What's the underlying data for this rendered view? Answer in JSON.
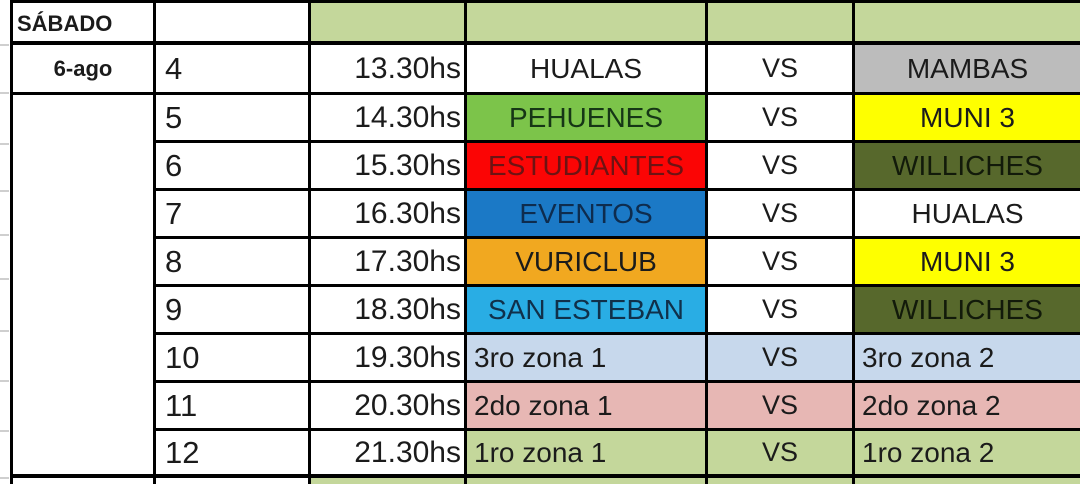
{
  "sheet": {
    "day_label": "SÁBADO",
    "date_label": "6-ago"
  },
  "colors": {
    "header_bg": "#c4d79b",
    "grid_line": "#000000",
    "default_text": "#1b1b1b"
  },
  "rows": [
    {
      "num": "4",
      "time": "13.30hs",
      "team1": "HUALAS",
      "team1_bg": "#ffffff",
      "team1_fg": "#1b1b1b",
      "vs": "VS",
      "vs_bg": "#ffffff",
      "team2": "MAMBAS",
      "team2_bg": "#bcbcbc",
      "team2_fg": "#1b1b1b",
      "align": "center"
    },
    {
      "num": "5",
      "time": "14.30hs",
      "team1": "PEHUENES",
      "team1_bg": "#7cc44a",
      "team1_fg": "#163616",
      "vs": "VS",
      "vs_bg": "#ffffff",
      "team2": "MUNI 3",
      "team2_bg": "#feff00",
      "team2_fg": "#1b1b1b",
      "align": "center"
    },
    {
      "num": "6",
      "time": "15.30hs",
      "team1": "ESTUDIANTES",
      "team1_bg": "#fb0505",
      "team1_fg": "#6d1313",
      "vs": "VS",
      "vs_bg": "#ffffff",
      "team2": "WILLICHES",
      "team2_bg": "#57682c",
      "team2_fg": "#121a0a",
      "align": "center"
    },
    {
      "num": "7",
      "time": "16.30hs",
      "team1": "EVENTOS",
      "team1_bg": "#1b79c6",
      "team1_fg": "#0e2c4e",
      "vs": "VS",
      "vs_bg": "#ffffff",
      "team2": "HUALAS",
      "team2_bg": "#ffffff",
      "team2_fg": "#1b1b1b",
      "align": "center"
    },
    {
      "num": "8",
      "time": "17.30hs",
      "team1": "VURICLUB",
      "team1_bg": "#f1a820",
      "team1_fg": "#1b1b1b",
      "vs": "VS",
      "vs_bg": "#ffffff",
      "team2": "MUNI 3",
      "team2_bg": "#feff00",
      "team2_fg": "#1b1b1b",
      "align": "center"
    },
    {
      "num": "9",
      "time": "18.30hs",
      "team1": "SAN ESTEBAN",
      "team1_bg": "#29ade4",
      "team1_fg": "#10304a",
      "vs": "VS",
      "vs_bg": "#ffffff",
      "team2": "WILLICHES",
      "team2_bg": "#57682c",
      "team2_fg": "#121a0a",
      "align": "center"
    },
    {
      "num": "10",
      "time": "19.30hs",
      "team1": "3ro zona 1",
      "team1_bg": "#c7d8ec",
      "team1_fg": "#1b1b1b",
      "vs": "VS",
      "vs_bg": "#c7d8ec",
      "team2": "3ro zona 2",
      "team2_bg": "#c7d8ec",
      "team2_fg": "#1b1b1b",
      "align": "left"
    },
    {
      "num": "11",
      "time": "20.30hs",
      "team1": "2do zona 1",
      "team1_bg": "#e7b7b4",
      "team1_fg": "#1b1b1b",
      "vs": "VS",
      "vs_bg": "#e7b7b4",
      "team2": "2do zona 2",
      "team2_bg": "#e7b7b4",
      "team2_fg": "#1b1b1b",
      "align": "left"
    },
    {
      "num": "12",
      "time": "21.30hs",
      "team1": "1ro zona 1",
      "team1_bg": "#c4d79b",
      "team1_fg": "#1b1b1b",
      "vs": "VS",
      "vs_bg": "#c4d79b",
      "team2": "1ro zona 2",
      "team2_bg": "#c4d79b",
      "team2_fg": "#1b1b1b",
      "align": "left"
    }
  ]
}
